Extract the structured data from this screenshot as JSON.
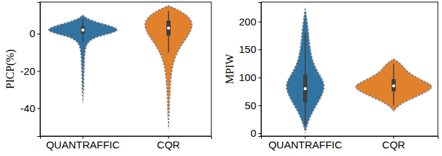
{
  "chart_data": [
    {
      "type": "violin",
      "ylabel": "PICP(%)",
      "categories": [
        "QUANTRAFFIC",
        "CQR"
      ],
      "colors": [
        "#3274a1",
        "#e1812c"
      ],
      "ylim": [
        -55,
        17
      ],
      "yticks": [
        -40,
        -20,
        0
      ],
      "violins": [
        {
          "y": [
            -37,
            -30,
            -20,
            -10,
            -5,
            -2,
            0,
            2,
            4,
            6,
            8,
            10
          ],
          "density": [
            0,
            0.02,
            0.03,
            0.05,
            0.1,
            0.3,
            0.75,
            1,
            0.8,
            0.4,
            0.12,
            0
          ],
          "whisker_low": -4,
          "q1": 0,
          "median": 2,
          "q3": 4,
          "whisker_high": 8
        },
        {
          "y": [
            -51,
            -40,
            -30,
            -20,
            -12,
            -6,
            -2,
            2,
            6,
            10,
            13,
            15
          ],
          "density": [
            0,
            0.02,
            0.04,
            0.08,
            0.18,
            0.35,
            0.5,
            0.62,
            0.66,
            0.5,
            0.25,
            0
          ],
          "whisker_low": -10,
          "q1": -1,
          "median": 3,
          "q3": 7,
          "whisker_high": 12
        }
      ]
    },
    {
      "type": "violin",
      "ylabel": "MPIW",
      "categories": [
        "QUANTRAFFIC",
        "CQR"
      ],
      "colors": [
        "#3274a1",
        "#e1812c"
      ],
      "ylim": [
        -5,
        235
      ],
      "yticks": [
        0,
        50,
        100,
        150,
        200
      ],
      "violins": [
        {
          "y": [
            2,
            20,
            40,
            60,
            80,
            95,
            110,
            130,
            150,
            170,
            190,
            210,
            225
          ],
          "density": [
            0,
            0.07,
            0.2,
            0.38,
            0.52,
            0.47,
            0.32,
            0.19,
            0.13,
            0.1,
            0.07,
            0.03,
            0
          ],
          "whisker_low": 15,
          "q1": 55,
          "median": 80,
          "q3": 105,
          "whisker_high": 180
        },
        {
          "y": [
            40,
            50,
            60,
            70,
            80,
            85,
            90,
            100,
            110,
            120,
            130,
            133
          ],
          "density": [
            0,
            0.12,
            0.4,
            0.75,
            1,
            1,
            0.9,
            0.6,
            0.35,
            0.25,
            0.08,
            0
          ],
          "whisker_low": 50,
          "q1": 75,
          "median": 85,
          "q3": 97,
          "whisker_high": 125
        }
      ]
    }
  ]
}
